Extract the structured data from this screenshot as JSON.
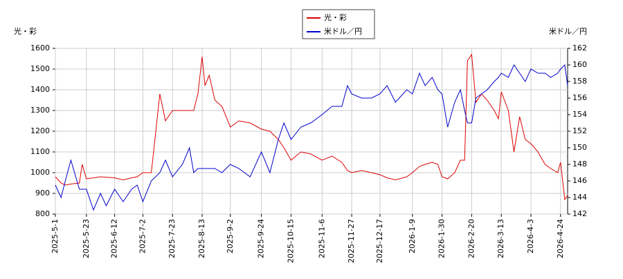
{
  "chart_data": {
    "type": "line",
    "y_label": "光・彩",
    "y2_label": "米ドル／円",
    "x": [
      "2025-5-1",
      "2025-5-5",
      "2025-5-8",
      "2025-5-12",
      "2025-5-18",
      "2025-5-20",
      "2025-5-23",
      "2025-5-28",
      "2025-6-2",
      "2025-6-6",
      "2025-6-12",
      "2025-6-18",
      "2025-6-24",
      "2025-6-28",
      "2025-7-2",
      "2025-7-8",
      "2025-7-14",
      "2025-7-18",
      "2025-7-23",
      "2025-7-30",
      "2025-8-4",
      "2025-8-7",
      "2025-8-10",
      "2025-8-13",
      "2025-8-15",
      "2025-8-18",
      "2025-8-22",
      "2025-8-27",
      "2025-9-2",
      "2025-9-8",
      "2025-9-16",
      "2025-9-24",
      "2025-9-30",
      "2025-10-6",
      "2025-10-10",
      "2025-10-15",
      "2025-10-22",
      "2025-10-29",
      "2025-11-6",
      "2025-11-13",
      "2025-11-20",
      "2025-11-24",
      "2025-11-27",
      "2025-12-4",
      "2025-12-11",
      "2025-12-17",
      "2025-12-22",
      "2025-12-28",
      "2026-1-5",
      "2026-1-9",
      "2026-1-14",
      "2026-1-18",
      "2026-1-23",
      "2026-1-27",
      "2026-1-30",
      "2026-2-3",
      "2026-2-8",
      "2026-2-12",
      "2026-2-15",
      "2026-2-17",
      "2026-2-20",
      "2026-2-23",
      "2026-2-27",
      "2026-3-3",
      "2026-3-8",
      "2026-3-11",
      "2026-3-13",
      "2026-3-18",
      "2026-3-22",
      "2026-3-26",
      "2026-3-30",
      "2026-4-3",
      "2026-4-8",
      "2026-4-13",
      "2026-4-17",
      "2026-4-22",
      "2026-4-24",
      "2026-4-27",
      "2026-4-29"
    ],
    "series": [
      {
        "name": "光・彩",
        "color": "#dd0000",
        "values": [
          980,
          950,
          940,
          945,
          950,
          1040,
          970,
          975,
          980,
          978,
          975,
          965,
          975,
          980,
          1000,
          1000,
          1380,
          1250,
          1300,
          1300,
          1300,
          1300,
          1380,
          1560,
          1420,
          1470,
          1350,
          1320,
          1220,
          1250,
          1240,
          1210,
          1200,
          1160,
          1120,
          1060,
          1100,
          1090,
          1060,
          1080,
          1050,
          1010,
          1000,
          1010,
          1000,
          990,
          975,
          965,
          980,
          1000,
          1030,
          1040,
          1050,
          1040,
          980,
          970,
          1000,
          1060,
          1060,
          1540,
          1570,
          1340,
          1380,
          1350,
          1300,
          1260,
          1390,
          1300,
          1100,
          1270,
          1160,
          1140,
          1100,
          1040,
          1020,
          1000,
          1050,
          870,
          890
        ]
      },
      {
        "name": "米ドル／円",
        "color": "#0000cc",
        "axis": "y2",
        "values": [
          145.5,
          144,
          146,
          148.5,
          145,
          145,
          145,
          142.5,
          144.5,
          143,
          145,
          143.5,
          145,
          145.5,
          143.5,
          146,
          147,
          148.5,
          146.5,
          148,
          150,
          147,
          147.5,
          147.5,
          147.5,
          147.5,
          147.5,
          147,
          148,
          147.5,
          146.5,
          149.5,
          147,
          151,
          153,
          151,
          152.5,
          153,
          154,
          155,
          155,
          157.5,
          156.5,
          156,
          156,
          156.5,
          157.5,
          155.5,
          157,
          156.5,
          159,
          157.5,
          158.5,
          157,
          156.5,
          152.5,
          155.5,
          157,
          154.5,
          153,
          153,
          156,
          156.5,
          157,
          158,
          158.5,
          159,
          158.5,
          160,
          159,
          158,
          159.5,
          159,
          159,
          158.5,
          159,
          159.5,
          160,
          157.5
        ]
      }
    ],
    "xlim": [
      "2025-5-1",
      "2026-4-29"
    ],
    "xticks": [
      "2025-5-1",
      "2025-5-23",
      "2025-6-12",
      "2025-7-2",
      "2025-7-23",
      "2025-8-13",
      "2025-9-2",
      "2025-9-24",
      "2025-10-15",
      "2025-11-6",
      "2025-11-27",
      "2025-12-17",
      "2026-1-9",
      "2026-1-30",
      "2026-2-20",
      "2026-3-13",
      "2026-4-3",
      "2026-4-24"
    ],
    "ylim": [
      800,
      1600
    ],
    "yticks": [
      800,
      900,
      1000,
      1100,
      1200,
      1300,
      1400,
      1500,
      1600
    ],
    "y2lim": [
      142,
      162
    ],
    "y2ticks": [
      142,
      144,
      146,
      148,
      150,
      152,
      154,
      156,
      158,
      160,
      162
    ],
    "grid": true
  }
}
